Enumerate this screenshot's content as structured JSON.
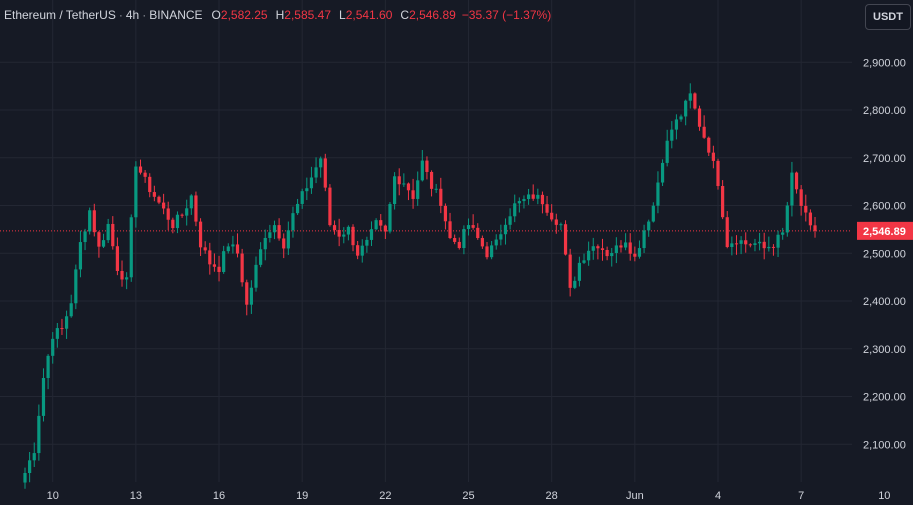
{
  "legend": {
    "symbol": "Ethereum / TetherUS",
    "interval": "4h",
    "exchange": "BINANCE",
    "open_label": "O",
    "open": "2,582.25",
    "high_label": "H",
    "high": "2,585.47",
    "low_label": "L",
    "low": "2,541.60",
    "close_label": "C",
    "close": "2,546.89",
    "change": "−35.37 (−1.37%)"
  },
  "currency_button": "USDT",
  "colors": {
    "background": "#161a25",
    "grid": "#232733",
    "up": "#089981",
    "down": "#f23645",
    "axis_text": "#d1d4dc"
  },
  "chart_data": {
    "type": "candlestick",
    "symbol": "ETHUSDT",
    "interval": "4h",
    "last_price": 2546.89,
    "last_price_label": "2,546.89",
    "ylim": [
      2020,
      2940
    ],
    "y_ticks": [
      2100,
      2200,
      2300,
      2400,
      2500,
      2600,
      2700,
      2800,
      2900
    ],
    "y_tick_labels": [
      "2,100.00",
      "2,200.00",
      "2,300.00",
      "2,400.00",
      "2,500.00",
      "2,600.00",
      "2,700.00",
      "2,800.00",
      "2,900.00"
    ],
    "x_tick_labels": [
      "7",
      "10",
      "13",
      "16",
      "19",
      "22",
      "25",
      "28",
      "Jun",
      "4",
      "7",
      "10",
      "13",
      "16",
      "19"
    ],
    "x_tick_bars": [
      -12,
      6,
      24,
      42,
      60,
      78,
      96,
      114,
      132,
      150,
      168,
      186,
      204,
      222,
      240
    ],
    "grid": true,
    "anchor_closes": [
      [
        0,
        2040
      ],
      [
        2,
        2090
      ],
      [
        4,
        2240
      ],
      [
        6,
        2330
      ],
      [
        8,
        2340
      ],
      [
        10,
        2400
      ],
      [
        12,
        2520
      ],
      [
        14,
        2590
      ],
      [
        16,
        2510
      ],
      [
        18,
        2560
      ],
      [
        20,
        2470
      ],
      [
        22,
        2440
      ],
      [
        24,
        2690
      ],
      [
        26,
        2650
      ],
      [
        28,
        2620
      ],
      [
        30,
        2590
      ],
      [
        32,
        2560
      ],
      [
        34,
        2580
      ],
      [
        36,
        2620
      ],
      [
        38,
        2520
      ],
      [
        40,
        2480
      ],
      [
        42,
        2470
      ],
      [
        44,
        2520
      ],
      [
        46,
        2500
      ],
      [
        48,
        2390
      ],
      [
        50,
        2470
      ],
      [
        52,
        2540
      ],
      [
        54,
        2560
      ],
      [
        56,
        2520
      ],
      [
        58,
        2580
      ],
      [
        60,
        2620
      ],
      [
        62,
        2660
      ],
      [
        64,
        2700
      ],
      [
        66,
        2560
      ],
      [
        68,
        2540
      ],
      [
        70,
        2550
      ],
      [
        72,
        2500
      ],
      [
        74,
        2520
      ],
      [
        76,
        2560
      ],
      [
        78,
        2540
      ],
      [
        80,
        2660
      ],
      [
        82,
        2650
      ],
      [
        84,
        2620
      ],
      [
        86,
        2690
      ],
      [
        88,
        2640
      ],
      [
        90,
        2610
      ],
      [
        92,
        2530
      ],
      [
        94,
        2520
      ],
      [
        96,
        2560
      ],
      [
        98,
        2530
      ],
      [
        100,
        2500
      ],
      [
        102,
        2520
      ],
      [
        104,
        2570
      ],
      [
        106,
        2600
      ],
      [
        108,
        2610
      ],
      [
        110,
        2620
      ],
      [
        112,
        2610
      ],
      [
        114,
        2580
      ],
      [
        116,
        2560
      ],
      [
        118,
        2420
      ],
      [
        120,
        2480
      ],
      [
        122,
        2510
      ],
      [
        124,
        2520
      ],
      [
        126,
        2500
      ],
      [
        128,
        2510
      ],
      [
        130,
        2530
      ],
      [
        132,
        2490
      ],
      [
        134,
        2550
      ],
      [
        136,
        2600
      ],
      [
        138,
        2700
      ],
      [
        140,
        2760
      ],
      [
        142,
        2790
      ],
      [
        144,
        2830
      ],
      [
        146,
        2770
      ],
      [
        148,
        2720
      ],
      [
        150,
        2650
      ],
      [
        152,
        2520
      ],
      [
        154,
        2530
      ],
      [
        156,
        2520
      ],
      [
        158,
        2520
      ],
      [
        160,
        2510
      ],
      [
        162,
        2520
      ],
      [
        164,
        2540
      ],
      [
        166,
        2660
      ],
      [
        168,
        2600
      ],
      [
        170,
        2550
      ],
      [
        171,
        2546.89
      ]
    ]
  }
}
